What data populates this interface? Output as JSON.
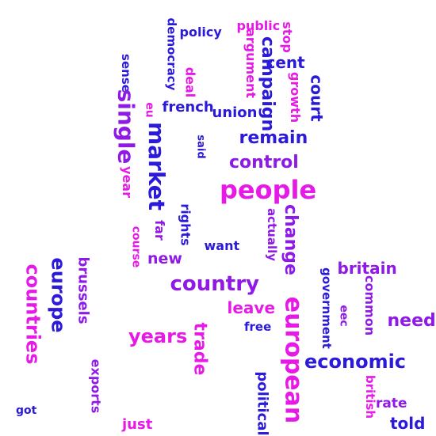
{
  "palette": {
    "magenta": "#e619e6",
    "blue": "#2b1ad9",
    "purple": "#8f19e6"
  },
  "words": [
    {
      "text": "policy",
      "color": "blue"
    },
    {
      "text": "democracy",
      "color": "blue"
    },
    {
      "text": "public",
      "color": "magenta"
    },
    {
      "text": "stop",
      "color": "magenta"
    },
    {
      "text": "argument",
      "color": "magenta"
    },
    {
      "text": "campaign",
      "color": "blue"
    },
    {
      "text": "cent",
      "color": "blue"
    },
    {
      "text": "growth",
      "color": "magenta"
    },
    {
      "text": "court",
      "color": "blue"
    },
    {
      "text": "sense",
      "color": "blue"
    },
    {
      "text": "deal",
      "color": "magenta"
    },
    {
      "text": "eu",
      "color": "magenta"
    },
    {
      "text": "french",
      "color": "blue"
    },
    {
      "text": "union",
      "color": "blue"
    },
    {
      "text": "single",
      "color": "purple"
    },
    {
      "text": "said",
      "color": "blue"
    },
    {
      "text": "remain",
      "color": "blue"
    },
    {
      "text": "market",
      "color": "blue"
    },
    {
      "text": "control",
      "color": "purple"
    },
    {
      "text": "year",
      "color": "magenta"
    },
    {
      "text": "people",
      "color": "magenta"
    },
    {
      "text": "rights",
      "color": "blue"
    },
    {
      "text": "far",
      "color": "purple"
    },
    {
      "text": "actually",
      "color": "purple"
    },
    {
      "text": "change",
      "color": "purple"
    },
    {
      "text": "course",
      "color": "magenta"
    },
    {
      "text": "want",
      "color": "blue"
    },
    {
      "text": "new",
      "color": "purple"
    },
    {
      "text": "britain",
      "color": "purple"
    },
    {
      "text": "countries",
      "color": "magenta"
    },
    {
      "text": "europe",
      "color": "blue"
    },
    {
      "text": "brussels",
      "color": "purple"
    },
    {
      "text": "government",
      "color": "blue"
    },
    {
      "text": "country",
      "color": "purple"
    },
    {
      "text": "common",
      "color": "purple"
    },
    {
      "text": "eec",
      "color": "purple"
    },
    {
      "text": "leave",
      "color": "magenta"
    },
    {
      "text": "european",
      "color": "magenta"
    },
    {
      "text": "need",
      "color": "purple"
    },
    {
      "text": "free",
      "color": "blue"
    },
    {
      "text": "years",
      "color": "magenta"
    },
    {
      "text": "trade",
      "color": "magenta"
    },
    {
      "text": "economic",
      "color": "blue"
    },
    {
      "text": "exports",
      "color": "purple"
    },
    {
      "text": "political",
      "color": "blue"
    },
    {
      "text": "british",
      "color": "magenta"
    },
    {
      "text": "rate",
      "color": "purple"
    },
    {
      "text": "got",
      "color": "blue"
    },
    {
      "text": "just",
      "color": "magenta"
    },
    {
      "text": "told",
      "color": "blue"
    }
  ]
}
